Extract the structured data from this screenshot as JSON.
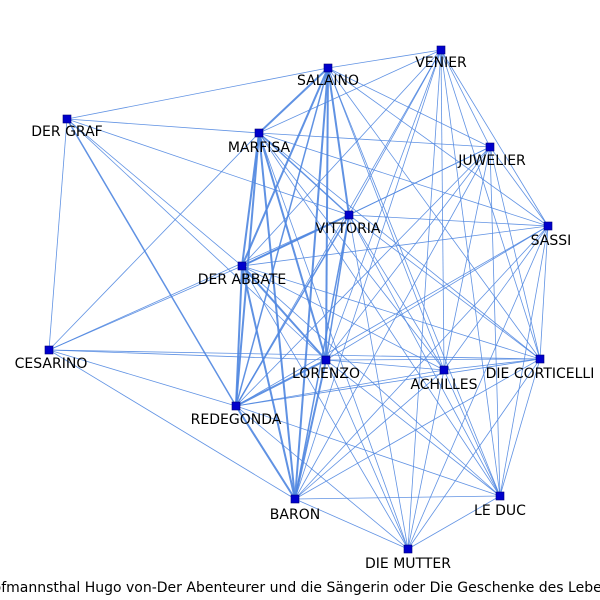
{
  "caption": "Hofmannsthal Hugo von-Der Abenteurer und die Sängerin oder Die Geschenke des Lebens",
  "colors": {
    "node": "#0000cc",
    "edge": "#4f86e0",
    "background": "#ffffff"
  },
  "nodes": [
    {
      "id": "salaino",
      "label": "SALAINO"
    },
    {
      "id": "venier",
      "label": "VENIER"
    },
    {
      "id": "der_graf",
      "label": "DER GRAF"
    },
    {
      "id": "marfisa",
      "label": "MARFISA"
    },
    {
      "id": "juwelier",
      "label": "JUWELIER"
    },
    {
      "id": "vittoria",
      "label": "VITTORIA"
    },
    {
      "id": "sassi",
      "label": "SASSI"
    },
    {
      "id": "der_abbate",
      "label": "DER ABBATE"
    },
    {
      "id": "cesarino",
      "label": "CESARINO"
    },
    {
      "id": "lorenzo",
      "label": "LORENZO"
    },
    {
      "id": "achilles",
      "label": "ACHILLES"
    },
    {
      "id": "die_corticelli",
      "label": "DIE CORTICELLI"
    },
    {
      "id": "redegonda",
      "label": "REDEGONDA"
    },
    {
      "id": "baron",
      "label": "BARON"
    },
    {
      "id": "le_duc",
      "label": "LE DUC"
    },
    {
      "id": "die_mutter",
      "label": "DIE MUTTER"
    }
  ],
  "edges": [
    [
      "salaino",
      "marfisa",
      3
    ],
    [
      "salaino",
      "vittoria",
      3
    ],
    [
      "salaino",
      "der_abbate",
      3
    ],
    [
      "salaino",
      "lorenzo",
      3
    ],
    [
      "salaino",
      "redegonda",
      2
    ],
    [
      "salaino",
      "baron",
      3
    ],
    [
      "salaino",
      "venier",
      1
    ],
    [
      "salaino",
      "juwelier",
      1
    ],
    [
      "salaino",
      "sassi",
      1
    ],
    [
      "salaino",
      "achilles",
      1
    ],
    [
      "salaino",
      "die_corticelli",
      1
    ],
    [
      "salaino",
      "le_duc",
      1
    ],
    [
      "salaino",
      "der_graf",
      1
    ],
    [
      "venier",
      "marfisa",
      1
    ],
    [
      "venier",
      "vittoria",
      1
    ],
    [
      "venier",
      "der_abbate",
      1
    ],
    [
      "venier",
      "lorenzo",
      1
    ],
    [
      "venier",
      "redegonda",
      1
    ],
    [
      "venier",
      "baron",
      1
    ],
    [
      "venier",
      "juwelier",
      1
    ],
    [
      "venier",
      "sassi",
      1
    ],
    [
      "venier",
      "achilles",
      1
    ],
    [
      "venier",
      "die_corticelli",
      1
    ],
    [
      "venier",
      "le_duc",
      1
    ],
    [
      "venier",
      "die_mutter",
      1
    ],
    [
      "der_graf",
      "marfisa",
      1
    ],
    [
      "der_graf",
      "der_abbate",
      1
    ],
    [
      "der_graf",
      "redegonda",
      2
    ],
    [
      "der_graf",
      "cesarino",
      1
    ],
    [
      "der_graf",
      "vittoria",
      1
    ],
    [
      "der_graf",
      "lorenzo",
      1
    ],
    [
      "marfisa",
      "vittoria",
      2
    ],
    [
      "marfisa",
      "der_abbate",
      3
    ],
    [
      "marfisa",
      "lorenzo",
      3
    ],
    [
      "marfisa",
      "redegonda",
      3
    ],
    [
      "marfisa",
      "baron",
      3
    ],
    [
      "marfisa",
      "juwelier",
      1
    ],
    [
      "marfisa",
      "sassi",
      1
    ],
    [
      "marfisa",
      "achilles",
      1
    ],
    [
      "marfisa",
      "die_corticelli",
      1
    ],
    [
      "marfisa",
      "le_duc",
      1
    ],
    [
      "marfisa",
      "cesarino",
      1
    ],
    [
      "marfisa",
      "die_mutter",
      1
    ],
    [
      "juwelier",
      "vittoria",
      1
    ],
    [
      "juwelier",
      "der_abbate",
      1
    ],
    [
      "juwelier",
      "lorenzo",
      1
    ],
    [
      "juwelier",
      "achilles",
      1
    ],
    [
      "juwelier",
      "die_corticelli",
      1
    ],
    [
      "juwelier",
      "le_duc",
      1
    ],
    [
      "juwelier",
      "baron",
      1
    ],
    [
      "juwelier",
      "redegonda",
      1
    ],
    [
      "juwelier",
      "sassi",
      1
    ],
    [
      "vittoria",
      "der_abbate",
      3
    ],
    [
      "vittoria",
      "lorenzo",
      2
    ],
    [
      "vittoria",
      "redegonda",
      2
    ],
    [
      "vittoria",
      "baron",
      2
    ],
    [
      "vittoria",
      "sassi",
      1
    ],
    [
      "vittoria",
      "achilles",
      1
    ],
    [
      "vittoria",
      "die_corticelli",
      1
    ],
    [
      "vittoria",
      "le_duc",
      1
    ],
    [
      "vittoria",
      "die_mutter",
      1
    ],
    [
      "vittoria",
      "cesarino",
      1
    ],
    [
      "sassi",
      "der_abbate",
      1
    ],
    [
      "sassi",
      "lorenzo",
      1
    ],
    [
      "sassi",
      "achilles",
      1
    ],
    [
      "sassi",
      "die_corticelli",
      1
    ],
    [
      "sassi",
      "le_duc",
      1
    ],
    [
      "sassi",
      "redegonda",
      1
    ],
    [
      "sassi",
      "baron",
      1
    ],
    [
      "sassi",
      "die_mutter",
      1
    ],
    [
      "der_abbate",
      "cesarino",
      1
    ],
    [
      "der_abbate",
      "lorenzo",
      3
    ],
    [
      "der_abbate",
      "redegonda",
      3
    ],
    [
      "der_abbate",
      "baron",
      3
    ],
    [
      "der_abbate",
      "achilles",
      1
    ],
    [
      "der_abbate",
      "die_corticelli",
      1
    ],
    [
      "der_abbate",
      "le_duc",
      1
    ],
    [
      "der_abbate",
      "die_mutter",
      1
    ],
    [
      "cesarino",
      "redegonda",
      1
    ],
    [
      "cesarino",
      "lorenzo",
      1
    ],
    [
      "cesarino",
      "baron",
      1
    ],
    [
      "cesarino",
      "die_corticelli",
      1
    ],
    [
      "lorenzo",
      "redegonda",
      3
    ],
    [
      "lorenzo",
      "baron",
      3
    ],
    [
      "lorenzo",
      "achilles",
      1
    ],
    [
      "lorenzo",
      "die_corticelli",
      1
    ],
    [
      "lorenzo",
      "le_duc",
      1
    ],
    [
      "lorenzo",
      "die_mutter",
      1
    ],
    [
      "achilles",
      "die_corticelli",
      1
    ],
    [
      "achilles",
      "redegonda",
      1
    ],
    [
      "achilles",
      "baron",
      1
    ],
    [
      "achilles",
      "le_duc",
      1
    ],
    [
      "achilles",
      "die_mutter",
      1
    ],
    [
      "die_corticelli",
      "redegonda",
      1
    ],
    [
      "die_corticelli",
      "baron",
      1
    ],
    [
      "die_corticelli",
      "le_duc",
      1
    ],
    [
      "die_corticelli",
      "die_mutter",
      1
    ],
    [
      "redegonda",
      "baron",
      3
    ],
    [
      "redegonda",
      "le_duc",
      1
    ],
    [
      "redegonda",
      "die_mutter",
      1
    ],
    [
      "baron",
      "le_duc",
      1
    ],
    [
      "baron",
      "die_mutter",
      1
    ],
    [
      "le_duc",
      "die_mutter",
      1
    ]
  ]
}
